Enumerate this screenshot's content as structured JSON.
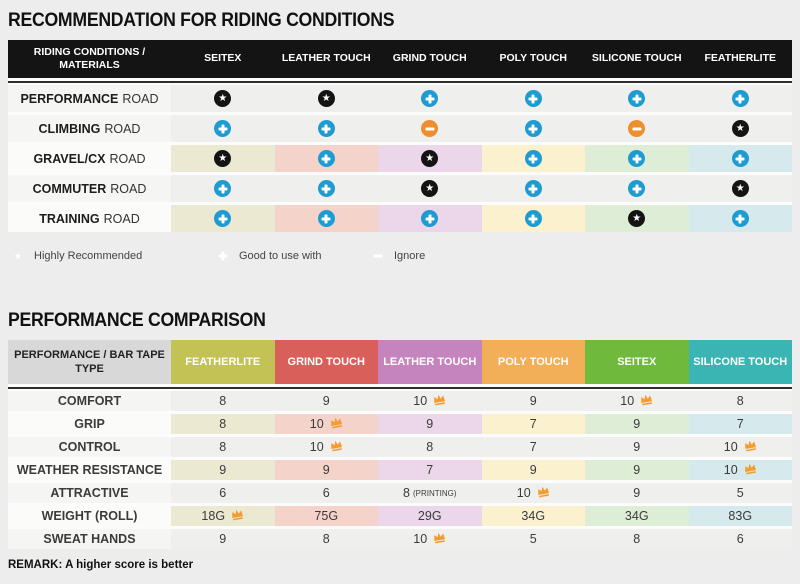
{
  "chart_data": [
    {
      "type": "table",
      "title": "RECOMMENDATION FOR RIDING CONDITIONS",
      "columns": [
        "RIDING CONDITIONS / MATERIALS",
        "SEITEX",
        "LEATHER TOUCH",
        "GRIND TOUCH",
        "POLY TOUCH",
        "SILICONE TOUCH",
        "FEATHERLITE"
      ],
      "rating_meanings": {
        "highly": "Highly Recommended",
        "good": "Good to use with",
        "ignore": "Ignore"
      },
      "rows": [
        {
          "label_strong": "PERFORMANCE",
          "label_rest": "ROAD",
          "tinted": false,
          "ratings": [
            "highly",
            "highly",
            "good",
            "good",
            "good",
            "good"
          ]
        },
        {
          "label_strong": "CLIMBING",
          "label_rest": "ROAD",
          "tinted": false,
          "ratings": [
            "good",
            "good",
            "ignore",
            "good",
            "ignore",
            "highly"
          ]
        },
        {
          "label_strong": "GRAVEL/CX",
          "label_rest": "ROAD",
          "tinted": true,
          "ratings": [
            "highly",
            "good",
            "highly",
            "good",
            "good",
            "good"
          ]
        },
        {
          "label_strong": "COMMUTER",
          "label_rest": "ROAD",
          "tinted": false,
          "ratings": [
            "good",
            "good",
            "highly",
            "good",
            "good",
            "highly"
          ]
        },
        {
          "label_strong": "TRAINING",
          "label_rest": "ROAD",
          "tinted": true,
          "ratings": [
            "good",
            "good",
            "good",
            "good",
            "highly",
            "good"
          ]
        }
      ],
      "legend": [
        {
          "icon": "star-icon",
          "label": "Highly Recommended"
        },
        {
          "icon": "plus-icon",
          "label": "Good to use with"
        },
        {
          "icon": "minus-icon",
          "label": "Ignore"
        }
      ]
    },
    {
      "type": "table",
      "title": "PERFORMANCE COMPARISON",
      "header_label": "PERFORMANCE / BAR TAPE TYPE",
      "columns": [
        {
          "label": "FEATHERLITE",
          "color": "#c3c255"
        },
        {
          "label": "GRIND TOUCH",
          "color": "#d9605a"
        },
        {
          "label": "LEATHER TOUCH",
          "color": "#c584bd"
        },
        {
          "label": "POLY TOUCH",
          "color": "#f3ae58"
        },
        {
          "label": "SEITEX",
          "color": "#6fb93c"
        },
        {
          "label": "SILICONE TOUCH",
          "color": "#3ab5b3"
        }
      ],
      "rows": [
        {
          "label": "COMFORT",
          "tinted": false,
          "cells": [
            {
              "value": "8"
            },
            {
              "value": "9"
            },
            {
              "value": "10",
              "crown": true
            },
            {
              "value": "9"
            },
            {
              "value": "10",
              "crown": true
            },
            {
              "value": "8"
            }
          ]
        },
        {
          "label": "GRIP",
          "tinted": true,
          "cells": [
            {
              "value": "8"
            },
            {
              "value": "10",
              "crown": true
            },
            {
              "value": "9"
            },
            {
              "value": "7"
            },
            {
              "value": "9"
            },
            {
              "value": "7"
            }
          ]
        },
        {
          "label": "CONTROL",
          "tinted": false,
          "cells": [
            {
              "value": "8"
            },
            {
              "value": "10",
              "crown": true
            },
            {
              "value": "8"
            },
            {
              "value": "7"
            },
            {
              "value": "9"
            },
            {
              "value": "10",
              "crown": true
            }
          ]
        },
        {
          "label": "WEATHER RESISTANCE",
          "tinted": true,
          "cells": [
            {
              "value": "9"
            },
            {
              "value": "9"
            },
            {
              "value": "7"
            },
            {
              "value": "9"
            },
            {
              "value": "9"
            },
            {
              "value": "10",
              "crown": true
            }
          ]
        },
        {
          "label": "ATTRACTIVE",
          "tinted": false,
          "cells": [
            {
              "value": "6"
            },
            {
              "value": "6"
            },
            {
              "value": "8",
              "suffix": "(PRINTING)"
            },
            {
              "value": "10",
              "crown": true
            },
            {
              "value": "9"
            },
            {
              "value": "5"
            }
          ]
        },
        {
          "label": "WEIGHT (ROLL)",
          "tinted": true,
          "cells": [
            {
              "value": "18G",
              "crown": true
            },
            {
              "value": "75G"
            },
            {
              "value": "29G"
            },
            {
              "value": "34G"
            },
            {
              "value": "34G"
            },
            {
              "value": "83G"
            }
          ]
        },
        {
          "label": "SWEAT HANDS",
          "tinted": false,
          "cells": [
            {
              "value": "9"
            },
            {
              "value": "8"
            },
            {
              "value": "10",
              "crown": true
            },
            {
              "value": "5"
            },
            {
              "value": "8"
            },
            {
              "value": "6"
            }
          ]
        }
      ],
      "remark": "REMARK: A higher score is better"
    }
  ],
  "style": {
    "page_bg": "#ededed",
    "table1_header_bg": "#141414",
    "table1_header_text": "#ffffff",
    "table2_header_label_bg": "#d8d8d8",
    "row_gray_bg": "#efefee",
    "row_gray_label_bg": "#f5f5f4",
    "tinted_row_label_bg": "#fbfbfa",
    "column_tints": [
      "#ebe9d2",
      "#f4d3ca",
      "#ecd6e9",
      "#fbf1cf",
      "#deeed6",
      "#d6eaee"
    ],
    "star_icon_color": "#141414",
    "plus_icon_color": "#1e9cd1",
    "minus_icon_color": "#ee8f2d",
    "crown_icon_color": "#f59c2e",
    "divider_color": "#2e2e2e"
  }
}
